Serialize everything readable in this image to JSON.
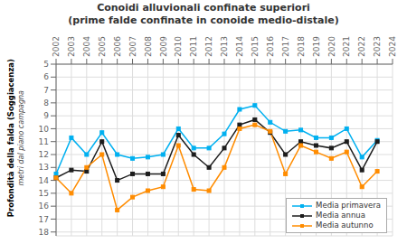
{
  "chart_data": {
    "type": "line",
    "title": "Conoidi alluvionali confinate superiori",
    "subtitle": "(prime falde confinate in conoide medio-distale)",
    "ylabel": [
      "Profondità della falda (Soggiacenza)",
      "metri dal piano campagna"
    ],
    "categories": [
      "2002",
      "2003",
      "2004",
      "2005",
      "2006",
      "2007",
      "2008",
      "2009",
      "2010",
      "2011",
      "2012",
      "2013",
      "2014",
      "2015",
      "2016",
      "2017",
      "2018",
      "2019",
      "2020",
      "2021",
      "2022",
      "2023",
      "2024"
    ],
    "series": [
      {
        "name": "Media primavera",
        "color": "#00B0F0",
        "values": [
          13.5,
          10.7,
          12.0,
          10.3,
          12.0,
          12.3,
          12.2,
          12.0,
          10.0,
          11.5,
          11.5,
          10.4,
          8.5,
          8.2,
          9.5,
          10.2,
          10.1,
          10.7,
          10.7,
          10.0,
          12.2,
          10.9,
          null
        ]
      },
      {
        "name": "Media annua",
        "color": "#1C1C1C",
        "values": [
          13.8,
          13.2,
          13.3,
          11.0,
          14.0,
          13.5,
          13.5,
          13.5,
          10.5,
          12.0,
          13.0,
          11.5,
          9.7,
          9.3,
          10.3,
          12.0,
          11.0,
          11.3,
          11.5,
          11.0,
          13.2,
          11.0,
          null
        ]
      },
      {
        "name": "Media autunno",
        "color": "#FF8C00",
        "values": [
          13.8,
          15.0,
          13.0,
          12.0,
          16.3,
          15.3,
          14.8,
          14.5,
          11.3,
          14.7,
          14.8,
          13.0,
          10.0,
          9.7,
          10.2,
          13.5,
          11.3,
          11.8,
          12.3,
          11.8,
          14.5,
          13.3,
          null
        ]
      }
    ],
    "marker": "square",
    "ylim": [
      18.3,
      5.0
    ],
    "yticks": [
      5,
      6,
      7,
      8,
      9,
      10,
      11,
      12,
      13,
      14,
      15,
      16,
      17,
      18
    ],
    "grid": true,
    "legend": "lower right"
  }
}
